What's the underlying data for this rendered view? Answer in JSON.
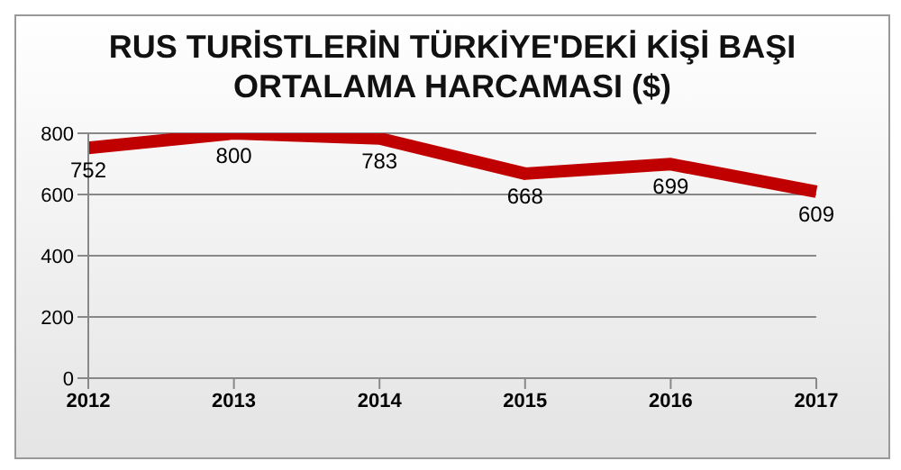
{
  "chart_data": {
    "type": "line",
    "title": "RUS TURİSTLERİN TÜRKİYE'DEKİ KİŞİ BAŞI ORTALAMA HARCAMASI ($)",
    "categories": [
      "2012",
      "2013",
      "2014",
      "2015",
      "2016",
      "2017"
    ],
    "series": [
      {
        "color": "#c00000",
        "values": [
          752,
          800,
          783,
          668,
          699,
          609
        ]
      }
    ],
    "ylim": [
      0,
      800
    ],
    "yticks": [
      0,
      200,
      400,
      600,
      800
    ],
    "grid": "y",
    "data_labels": true,
    "marker": "none",
    "line_style": "solid"
  }
}
